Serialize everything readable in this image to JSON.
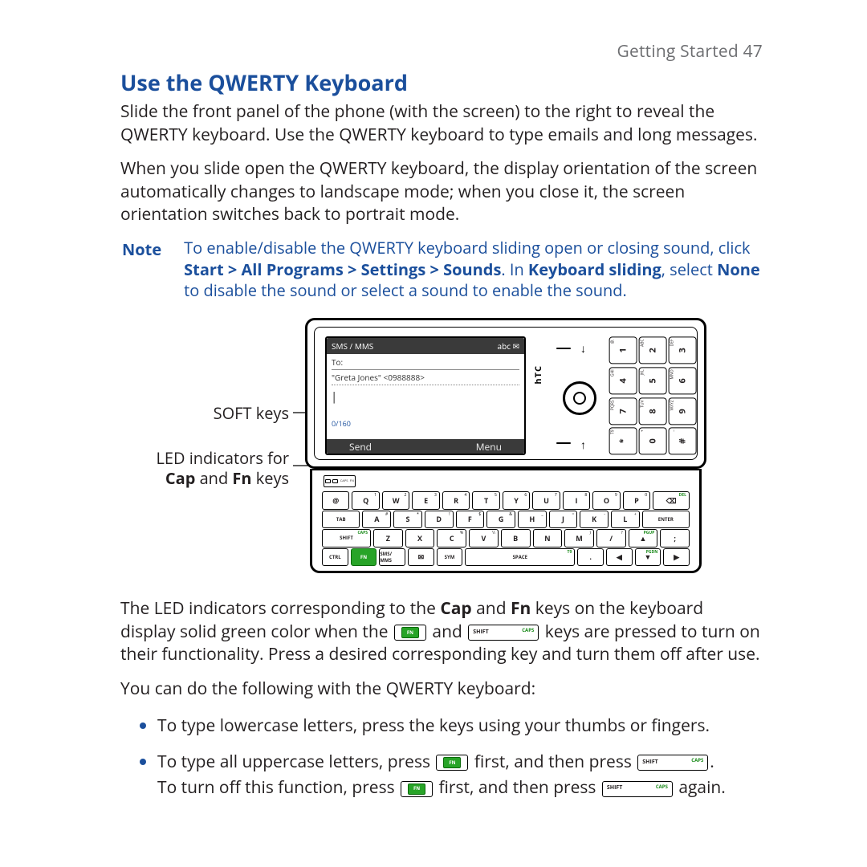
{
  "page": {
    "running_head": "Getting Started  47",
    "title": "Use the QWERTY Keyboard",
    "para1": "Slide the front panel of the phone (with the screen) to the right to reveal the QWERTY keyboard. Use the QWERTY keyboard to type emails and long messages.",
    "para2": "When you slide open the QWERTY keyboard, the display orientation of the screen automatically changes to landscape mode; when you close it, the screen orientation switches back to portrait mode.",
    "note_label": "Note",
    "note_a": "To enable/disable the QWERTY keyboard sliding open or closing sound, click ",
    "note_b": "Start > All Programs > Settings > Sounds",
    "note_c": ". In ",
    "note_d": "Keyboard sliding",
    "note_e": ", select ",
    "note_f": "None",
    "note_g": " to disable the sound or select a sound to enable the sound.",
    "para3a": "The LED indicators corresponding to the ",
    "para3b": "Cap",
    "para3c": " and ",
    "para3d": "Fn",
    "para3e": " keys on the keyboard display solid green color when the ",
    "para3f": " and ",
    "para3g": " keys are pressed to turn on their functionality. Press a desired corresponding key and turn them off after use.",
    "para4": "You can do the following with the QWERTY keyboard:",
    "bullet1": "To type lowercase letters, press the keys using your thumbs or fingers.",
    "bullet2a": "To type all uppercase letters, press ",
    "bullet2b": " first, and then press ",
    "bullet2c": ".",
    "bullet2d": "To turn off this function, press ",
    "bullet2e": " first, and then press ",
    "bullet2f": " again."
  },
  "diagram": {
    "callout_soft": "SOFT keys",
    "callout_led1": "LED indicators for",
    "callout_led2a": "Cap",
    "callout_led2b": " and ",
    "callout_led2c": "Fn",
    "callout_led2d": " keys",
    "titlebar": "SMS / MMS",
    "titlebar_right": "abc ✉",
    "to_label": "To:",
    "addr": "\"Greta Jones\" <0988888>",
    "counter": "0/160",
    "soft_left": "Send",
    "soft_right": "Menu",
    "brand": "hTC",
    "fn_label": "FN",
    "shift_label": "SHIFT",
    "caps_label": "CAPS",
    "led_caps": "CAPS",
    "led_fn": "FN",
    "keypad": [
      {
        "n": "1",
        "s": "@."
      },
      {
        "n": "2",
        "s": "ABC"
      },
      {
        "n": "3",
        "s": "DEF"
      },
      {
        "n": "4",
        "s": "GHI"
      },
      {
        "n": "5",
        "s": "JKL"
      },
      {
        "n": "6",
        "s": "MNO"
      },
      {
        "n": "7",
        "s": "PQRS"
      },
      {
        "n": "8",
        "s": "TUV"
      },
      {
        "n": "9",
        "s": "WXYZ"
      },
      {
        "n": "*",
        "s": "T9"
      },
      {
        "n": "0",
        "s": "+"
      },
      {
        "n": "#",
        "s": "_"
      }
    ],
    "rows": {
      "r1": [
        {
          "w": "w1",
          "l": "@",
          "tl": ""
        },
        {
          "w": "w1",
          "l": "Q",
          "tr": "1"
        },
        {
          "w": "w1",
          "l": "W",
          "tr": "2"
        },
        {
          "w": "w1",
          "l": "E",
          "tr": "3"
        },
        {
          "w": "w1",
          "l": "R",
          "tr": "4"
        },
        {
          "w": "w1",
          "l": "T",
          "tr": "5"
        },
        {
          "w": "w1",
          "l": "Y",
          "tr": "6"
        },
        {
          "w": "w1",
          "l": "U",
          "tr": "7"
        },
        {
          "w": "w1",
          "l": "I",
          "tr": "8"
        },
        {
          "w": "w1",
          "l": "O",
          "tr": "9"
        },
        {
          "w": "w1",
          "l": "P",
          "tr": "0"
        },
        {
          "w": "w125",
          "l": "⌫",
          "cls": "del",
          "trg": "DEL"
        }
      ],
      "r2": [
        {
          "w": "w125",
          "l": "TAB",
          "cls": "small-label"
        },
        {
          "w": "w1",
          "l": "A",
          "tr": "#"
        },
        {
          "w": "w1",
          "l": "S",
          "tr": "*"
        },
        {
          "w": "w1",
          "l": "D",
          "tr": "!"
        },
        {
          "w": "w1",
          "l": "F",
          "tr": "$"
        },
        {
          "w": "w1",
          "l": "G",
          "tr": "&"
        },
        {
          "w": "w1",
          "l": "H",
          "tr": "_"
        },
        {
          "w": "w1",
          "l": "J",
          "tr": "="
        },
        {
          "w": "w1",
          "l": "K",
          "tr": "-"
        },
        {
          "w": "w1",
          "l": "L",
          "tr": "+"
        },
        {
          "w": "w15",
          "l": "ENTER",
          "cls": "small-label"
        }
      ],
      "r3": [
        {
          "w": "w15",
          "l": "SHIFT",
          "cls": "small-label",
          "trg": "CAPS"
        },
        {
          "w": "w1",
          "l": "Z"
        },
        {
          "w": "w1",
          "l": "X"
        },
        {
          "w": "w1",
          "l": "C",
          "tr": "%"
        },
        {
          "w": "w1",
          "l": "V",
          "tr": "\\\\"
        },
        {
          "w": "w1",
          "l": "B"
        },
        {
          "w": "w1",
          "l": "N"
        },
        {
          "w": "w1",
          "l": "M",
          "tr": ")"
        },
        {
          "w": "w1",
          "l": "/",
          "tr": "?"
        },
        {
          "w": "w1",
          "l": "▲",
          "trg": "PGUP"
        },
        {
          "w": "w1",
          "l": ";"
        }
      ],
      "r4": [
        {
          "w": "w1",
          "l": "CTRL",
          "cls": "small-label"
        },
        {
          "w": "w1",
          "l": "FN",
          "cls": "fn small-label"
        },
        {
          "w": "w1",
          "l": "SMS/\nMMS",
          "cls": "small-label"
        },
        {
          "w": "w1",
          "l": "✉"
        },
        {
          "w": "w1",
          "l": "SYM",
          "cls": "small-label"
        },
        {
          "w": "w4",
          "l": "SPACE",
          "cls": "small-label",
          "trg": "T9"
        },
        {
          "w": "w1",
          "l": "."
        },
        {
          "w": "w1",
          "l": "◀"
        },
        {
          "w": "w1",
          "l": "▼",
          "trg": "PGDN"
        },
        {
          "w": "w1",
          "l": "▶"
        }
      ]
    }
  },
  "style": {
    "accent": "#1b4f9c",
    "fn_green": "#28a428",
    "caps_green": "#1a8a1a",
    "text": "#231f20",
    "muted": "#6d6e71"
  }
}
